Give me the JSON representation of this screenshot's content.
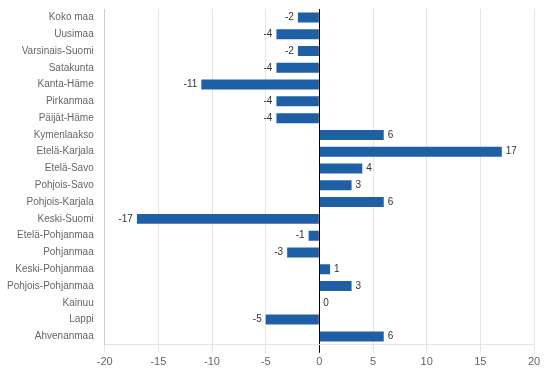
{
  "chart_data": {
    "type": "bar",
    "orientation": "horizontal",
    "categories": [
      "Koko maa",
      "Uusimaa",
      "Varsinais-Suomi",
      "Satakunta",
      "Kanta-Häme",
      "Pirkanmaa",
      "Päijät-Häme",
      "Kymenlaakso",
      "Etelä-Karjala",
      "Etelä-Savo",
      "Pohjois-Savo",
      "Pohjois-Karjala",
      "Keski-Suomi",
      "Etelä-Pohjanmaa",
      "Pohjanmaa",
      "Keski-Pohjanmaa",
      "Pohjois-Pohjanmaa",
      "Kainuu",
      "Lappi",
      "Ahvenanmaa"
    ],
    "values": [
      -2,
      -4,
      -2,
      -4,
      -11,
      -4,
      -4,
      6,
      17,
      4,
      3,
      6,
      -17,
      -1,
      -3,
      1,
      3,
      0,
      -5,
      6
    ],
    "color": "#1F5FA6",
    "xlim": [
      -20,
      20
    ],
    "xticks": [
      -20,
      -15,
      -10,
      -5,
      0,
      5,
      10,
      15,
      20
    ],
    "grid": true,
    "data_labels": true
  }
}
